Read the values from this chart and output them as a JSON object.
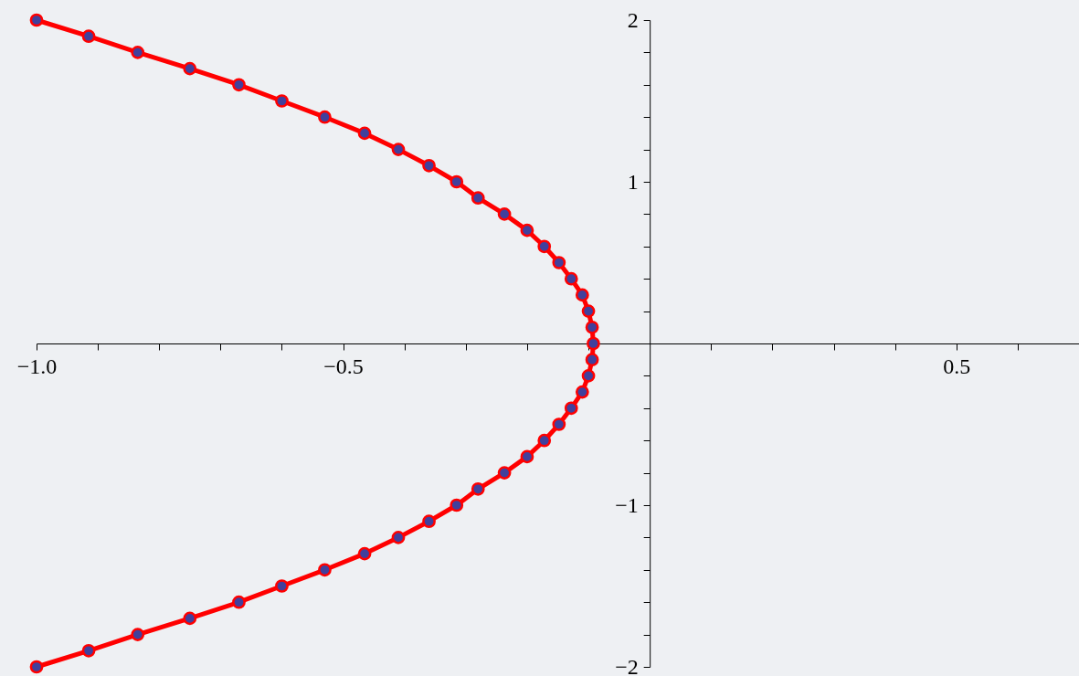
{
  "chart_data": {
    "type": "scatter",
    "x": [
      -1.0,
      -0.915,
      -0.835,
      -0.75,
      -0.67,
      -0.6,
      -0.53,
      -0.465,
      -0.41,
      -0.36,
      -0.315,
      -0.28,
      -0.237,
      -0.2,
      -0.172,
      -0.148,
      -0.128,
      -0.11,
      -0.1,
      -0.094,
      -0.092,
      -0.094,
      -0.1,
      -0.11,
      -0.128,
      -0.148,
      -0.172,
      -0.2,
      -0.237,
      -0.28,
      -0.315,
      -0.36,
      -0.41,
      -0.465,
      -0.53,
      -0.6,
      -0.67,
      -0.75,
      -0.835,
      -0.915,
      -1.0
    ],
    "series": [
      {
        "type": "line",
        "color": "#ff0000",
        "marker": "none",
        "values": [
          -2.0,
          -1.9,
          -1.8,
          -1.7,
          -1.6,
          -1.5,
          -1.4,
          -1.3,
          -1.2,
          -1.1,
          -1.0,
          -0.9,
          -0.8,
          -0.7,
          -0.6,
          -0.5,
          -0.4,
          -0.3,
          -0.2,
          -0.1,
          0.0,
          0.1,
          0.2,
          0.3,
          0.4,
          0.5,
          0.6,
          0.7,
          0.8,
          0.9,
          1.0,
          1.1,
          1.2,
          1.3,
          1.4,
          1.5,
          1.6,
          1.7,
          1.8,
          1.9,
          2.0
        ]
      },
      {
        "type": "scatter",
        "color": "#41409c",
        "marker": "circle",
        "values": [
          -2.0,
          -1.9,
          -1.8,
          -1.7,
          -1.6,
          -1.5,
          -1.4,
          -1.3,
          -1.2,
          -1.1,
          -1.0,
          -0.9,
          -0.8,
          -0.7,
          -0.6,
          -0.5,
          -0.4,
          -0.3,
          -0.2,
          -0.1,
          0.0,
          0.1,
          0.2,
          0.3,
          0.4,
          0.5,
          0.6,
          0.7,
          0.8,
          0.9,
          1.0,
          1.1,
          1.2,
          1.3,
          1.4,
          1.5,
          1.6,
          1.7,
          1.8,
          1.9,
          2.0
        ]
      }
    ],
    "xlim": [
      -1.0,
      0.7
    ],
    "xticks": [
      {
        "value": -1.0,
        "label": "−1.0"
      },
      {
        "value": -0.9,
        "label": null
      },
      {
        "value": -0.8,
        "label": null
      },
      {
        "value": -0.7,
        "label": null
      },
      {
        "value": -0.6,
        "label": null
      },
      {
        "value": -0.5,
        "label": "−0.5"
      },
      {
        "value": -0.4,
        "label": null
      },
      {
        "value": -0.3,
        "label": null
      },
      {
        "value": -0.2,
        "label": null
      },
      {
        "value": -0.1,
        "label": null
      },
      {
        "value": 0.1,
        "label": null
      },
      {
        "value": 0.2,
        "label": null
      },
      {
        "value": 0.3,
        "label": null
      },
      {
        "value": 0.4,
        "label": null
      },
      {
        "value": 0.5,
        "label": "0.5"
      },
      {
        "value": 0.6,
        "label": null
      }
    ],
    "ylim": [
      -2,
      2
    ],
    "yticks": [
      {
        "value": -2,
        "label": "−2"
      },
      {
        "value": -1.8,
        "label": null
      },
      {
        "value": -1.6,
        "label": null
      },
      {
        "value": -1.4,
        "label": null
      },
      {
        "value": -1.2,
        "label": null
      },
      {
        "value": -1,
        "label": "−1"
      },
      {
        "value": -0.8,
        "label": null
      },
      {
        "value": -0.6,
        "label": null
      },
      {
        "value": -0.4,
        "label": null
      },
      {
        "value": -0.2,
        "label": null
      },
      {
        "value": 0.2,
        "label": null
      },
      {
        "value": 0.4,
        "label": null
      },
      {
        "value": 0.6,
        "label": null
      },
      {
        "value": 0.8,
        "label": null
      },
      1,
      {
        "value": 1.2,
        "label": null
      },
      {
        "value": 1.4,
        "label": null
      },
      {
        "value": 1.6,
        "label": null
      },
      {
        "value": 1.8,
        "label": null
      },
      2
    ],
    "grid": false
  }
}
